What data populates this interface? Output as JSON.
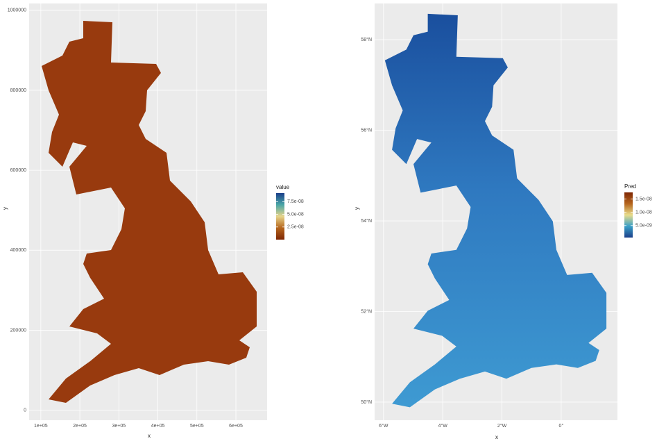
{
  "chart_data": [
    {
      "type": "raster-map",
      "xlabel": "x",
      "ylabel": "y",
      "xlim": [
        70000,
        680000
      ],
      "ylim": [
        -25000,
        1017000
      ],
      "xticks": [
        {
          "value": 100000,
          "label": "1e+05"
        },
        {
          "value": 200000,
          "label": "2e+05"
        },
        {
          "value": 300000,
          "label": "3e+05"
        },
        {
          "value": 400000,
          "label": "4e+05"
        },
        {
          "value": 500000,
          "label": "5e+05"
        },
        {
          "value": 600000,
          "label": "6e+05"
        }
      ],
      "yticks": [
        0,
        200000,
        400000,
        600000,
        800000,
        1000000
      ],
      "legend": {
        "title": "value",
        "lim": [
          0,
          9.2e-08
        ],
        "ticks": [
          {
            "value": 2.5e-08,
            "label": "2.5e-08"
          },
          {
            "value": 5e-08,
            "label": "5.0e-08"
          },
          {
            "value": 7.5e-08,
            "label": "7.5e-08"
          }
        ],
        "colors": [
          "#7f2704",
          "#b5651d",
          "#e6d48a",
          "#49a6a6",
          "#1b3f8a"
        ]
      }
    },
    {
      "type": "graticule-map",
      "xlabel": "x",
      "ylabel": "y",
      "xlim": [
        -6.3,
        1.9
      ],
      "ylim": [
        49.6,
        58.8
      ],
      "xticks": [
        {
          "value": -6,
          "label": "6°W"
        },
        {
          "value": -4,
          "label": "4°W"
        },
        {
          "value": -2,
          "label": "2°W"
        },
        {
          "value": 0,
          "label": "0°"
        }
      ],
      "yticks": [
        {
          "value": 50,
          "label": "50°N"
        },
        {
          "value": 52,
          "label": "52°N"
        },
        {
          "value": 54,
          "label": "54°N"
        },
        {
          "value": 56,
          "label": "56°N"
        },
        {
          "value": 58,
          "label": "58°N"
        }
      ],
      "legend": {
        "title": "Pred",
        "lim": [
          5e-10,
          1.75e-08
        ],
        "ticks": [
          {
            "value": 5e-09,
            "label": "5.0e-09"
          },
          {
            "value": 1e-08,
            "label": "1.0e-08"
          },
          {
            "value": 1.5e-08,
            "label": "1.5e-08"
          }
        ],
        "colors": [
          "#1b3f8a",
          "#3aa0c8",
          "#e8dc8a",
          "#b5651d",
          "#7f2704"
        ]
      }
    }
  ]
}
